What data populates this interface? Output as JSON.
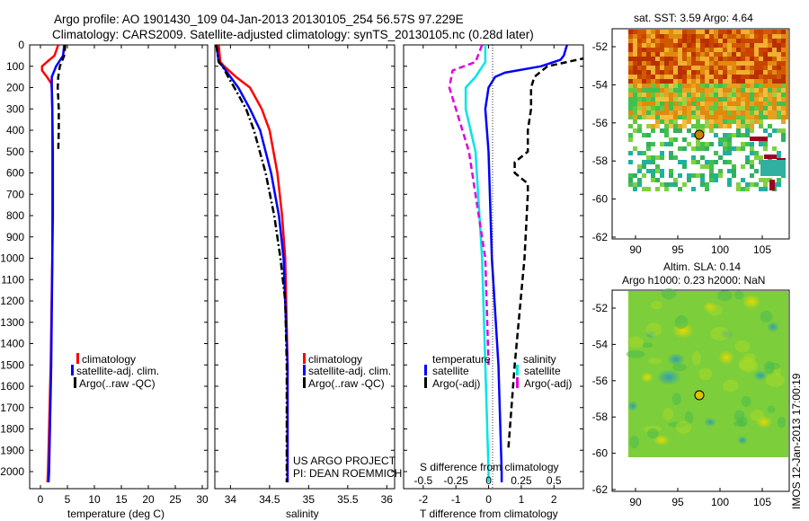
{
  "header": {
    "title_line1": "Argo profile: AO 1901430_109 04-Jan-2013 20130105_254 56.57S 97.229E",
    "title_line2": "Climatology: CARS2009. Satellite-adjusted climatology: synTS_20130105.nc (0.28d later)"
  },
  "colors": {
    "climatology": "#ff0000",
    "satellite": "#0000ff",
    "argo": "#000000",
    "sat_salinity": "#00e5e5",
    "argo_salinity": "#e000e0"
  },
  "depth_ticks": [
    "0",
    "100",
    "200",
    "300",
    "400",
    "500",
    "600",
    "700",
    "800",
    "900",
    "1000",
    "1100",
    "1200",
    "1300",
    "1400",
    "1500",
    "1600",
    "1700",
    "1800",
    "1900",
    "2000"
  ],
  "chart_data": [
    {
      "id": "temperature",
      "type": "line",
      "xlabel": "temperature (deg C)",
      "ylabel": "",
      "xlim": [
        -2,
        31
      ],
      "ylim": [
        2080,
        0
      ],
      "x_ticks": [
        "0",
        "5",
        "10",
        "15",
        "20",
        "25",
        "30"
      ],
      "legend": {
        "position": "lower-right",
        "entries": [
          "climatology",
          "satellite-adj. clim.",
          "Argo(..raw -QC)"
        ]
      },
      "series": [
        {
          "name": "climatology",
          "style": "solid",
          "depth": [
            0,
            50,
            80,
            100,
            120,
            150,
            180,
            200,
            300,
            500,
            800,
            1000,
            1500,
            2000,
            2050
          ],
          "values": [
            3.3,
            2.6,
            1.2,
            0.3,
            0.3,
            1.2,
            2.0,
            2.1,
            2.2,
            2.2,
            2.2,
            2.2,
            1.9,
            1.4,
            1.3
          ]
        },
        {
          "name": "satellite-adj. clim.",
          "style": "solid",
          "depth": [
            0,
            50,
            100,
            150,
            200,
            300,
            500,
            800,
            1000,
            1500,
            2000,
            2050
          ],
          "values": [
            4.4,
            4.2,
            2.9,
            2.1,
            2.1,
            2.2,
            2.3,
            2.3,
            2.2,
            2.0,
            1.6,
            1.5
          ]
        },
        {
          "name": "Argo(..raw -QC)",
          "style": "dash",
          "depth": [
            0,
            50,
            100,
            150,
            200,
            250,
            300,
            400,
            500
          ],
          "values": [
            4.6,
            4.4,
            3.6,
            3.3,
            3.2,
            3.3,
            3.4,
            3.4,
            3.3
          ]
        }
      ]
    },
    {
      "id": "salinity",
      "type": "line",
      "xlabel": "salinity",
      "ylabel": "",
      "xlim": [
        33.8,
        36.1
      ],
      "ylim": [
        2080,
        0
      ],
      "x_ticks": [
        "34",
        "34.5",
        "35",
        "35.5",
        "36"
      ],
      "legend": {
        "position": "lower-right",
        "entries": [
          "climatology",
          "satellite-adj. clim.",
          "Argo(..raw -QC)"
        ]
      },
      "annotation": [
        "US ARGO PROJECT",
        "PI: DEAN ROEMMICH"
      ],
      "series": [
        {
          "name": "climatology",
          "style": "solid",
          "depth": [
            0,
            80,
            100,
            150,
            200,
            300,
            400,
            600,
            800,
            1000,
            1500,
            2000,
            2050
          ],
          "values": [
            33.85,
            33.87,
            33.92,
            34.07,
            34.25,
            34.4,
            34.5,
            34.6,
            34.66,
            34.7,
            34.73,
            34.73,
            34.73
          ]
        },
        {
          "name": "satellite-adj. clim.",
          "style": "solid",
          "depth": [
            0,
            80,
            100,
            150,
            200,
            300,
            400,
            600,
            800,
            1000,
            1500,
            2000,
            2050
          ],
          "values": [
            33.82,
            33.85,
            33.9,
            34.0,
            34.1,
            34.25,
            34.38,
            34.52,
            34.62,
            34.68,
            34.73,
            34.73,
            34.73
          ]
        },
        {
          "name": "Argo(..raw -QC)",
          "style": "dashdot",
          "depth": [
            0,
            80,
            100,
            150,
            200,
            300,
            400,
            600,
            800,
            1000,
            1200,
            1500,
            2000,
            2050
          ],
          "values": [
            33.82,
            33.85,
            33.9,
            33.97,
            34.05,
            34.2,
            34.3,
            34.45,
            34.56,
            34.64,
            34.7,
            34.72,
            34.72,
            34.72
          ]
        }
      ]
    },
    {
      "id": "difference",
      "type": "line",
      "xlabel": "T difference from climatology",
      "top_label": "S difference from climatology",
      "xlim": [
        -2.6,
        2.9
      ],
      "ylim": [
        2080,
        0
      ],
      "x_ticks": [
        "-2",
        "-1",
        "0",
        "1",
        "2"
      ],
      "s_ticks": [
        "-0.5",
        "-0.25",
        "0",
        "0.25",
        "0.5"
      ],
      "legend": {
        "position": "lower",
        "temperature_title": "temperature",
        "salinity_title": "salinity",
        "entries": [
          "satellite",
          "Argo(-adj)",
          "satellite",
          "Argo(-adj)"
        ]
      },
      "series": [
        {
          "name": "temperature satellite",
          "style": "solid",
          "depth": [
            0,
            50,
            70,
            100,
            130,
            150,
            200,
            300,
            500,
            1000,
            1500,
            2000,
            2050
          ],
          "values": [
            2.4,
            2.3,
            2.2,
            1.6,
            0.5,
            0.2,
            0.0,
            -0.1,
            0.0,
            0.1,
            0.3,
            0.4,
            0.4
          ]
        },
        {
          "name": "temperature Argo(-adj)",
          "style": "dash",
          "depth": [
            0,
            60,
            100,
            150,
            200,
            300,
            400,
            500,
            550,
            600,
            650,
            700,
            1000,
            1500,
            1900
          ],
          "values": [
            3.8,
            3.0,
            1.8,
            1.4,
            1.3,
            1.3,
            1.2,
            1.2,
            0.8,
            0.8,
            1.2,
            1.2,
            1.1,
            0.8,
            0.6
          ]
        },
        {
          "name": "salinity satellite",
          "style": "solid",
          "depth": [
            0,
            80,
            150,
            200,
            300,
            500,
            1000,
            1500,
            2000,
            2050
          ],
          "values": [
            -0.1,
            -0.1,
            -0.4,
            -0.7,
            -0.7,
            -0.4,
            -0.2,
            -0.1,
            0.0,
            0.0
          ]
        },
        {
          "name": "salinity Argo(-adj)",
          "style": "dash",
          "depth": [
            0,
            80,
            120,
            200,
            300,
            500,
            800,
            1000,
            1500
          ],
          "values": [
            -0.2,
            -0.4,
            -1.1,
            -1.2,
            -1.0,
            -0.6,
            -0.3,
            -0.1,
            0.0
          ]
        }
      ]
    }
  ],
  "sst_map": {
    "title": "sat. SST: 3.59  Argo: 4.64",
    "lat_ticks": [
      "-52",
      "-54",
      "-56",
      "-58",
      "-60",
      "-62"
    ],
    "lon_ticks": [
      "90",
      "95",
      "100",
      "105"
    ]
  },
  "sla_map": {
    "title_line1": "Altim. SLA: 0.14",
    "title_line2": "Argo h1000: 0.23 h2000: NaN",
    "lat_ticks": [
      "-52",
      "-54",
      "-56",
      "-58",
      "-60",
      "-62"
    ],
    "lon_ticks": [
      "90",
      "95",
      "100",
      "105"
    ]
  },
  "stamp": "IMOS 12-Jan-2013 17:00:19"
}
